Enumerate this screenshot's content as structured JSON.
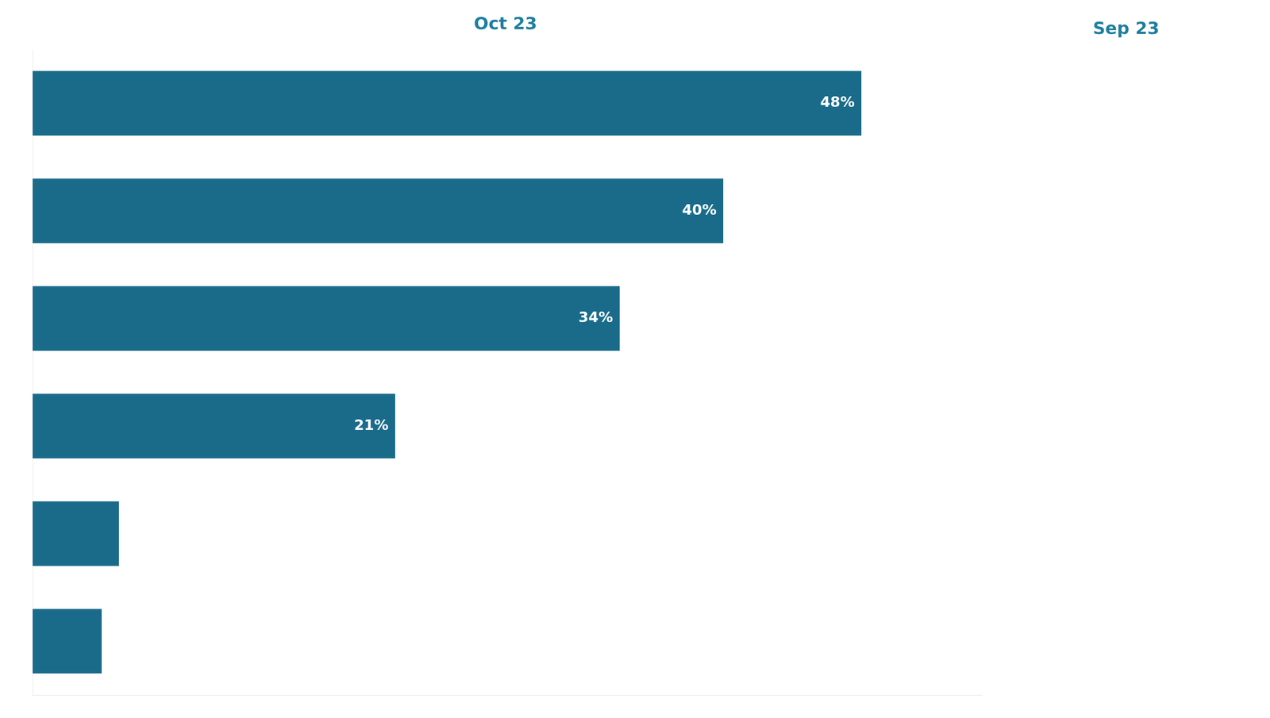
{
  "chart_data": {
    "type": "bar",
    "orientation": "horizontal",
    "title": "Oct 23",
    "annotations": [
      "Sep 23"
    ],
    "categories": [
      null,
      null,
      null,
      null,
      null,
      null
    ],
    "values": [
      48,
      40,
      34,
      21,
      5,
      4
    ],
    "value_labels": [
      "48%",
      "40%",
      "34%",
      "21%",
      null,
      null
    ],
    "data_labels": true,
    "color": "#1a6b8a",
    "xlim": [
      0,
      55
    ],
    "grid": false,
    "tick_labels": false
  }
}
